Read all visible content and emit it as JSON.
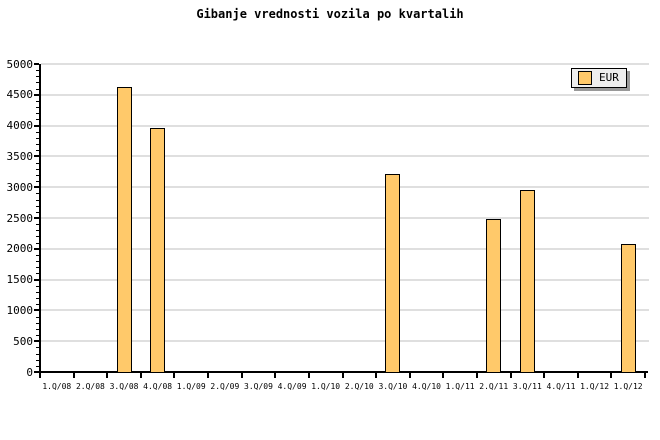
{
  "title": "Gibanje vrednosti vozila po kvartalih",
  "legend": {
    "label": "EUR"
  },
  "colors": {
    "background": "#FFFFFF",
    "bar_fill": "#FFC96A",
    "bar_border": "#000000",
    "grid": "#DFDFDF",
    "axis": "#000000",
    "text": "#000000",
    "legend_bg": "#EEEEEE",
    "legend_shadow": "#999999"
  },
  "chart_data": {
    "type": "bar",
    "title": "Gibanje vrednosti vozila po kvartalih",
    "categories": [
      "1.Q/08",
      "2.Q/08",
      "3.Q/08",
      "4.Q/08",
      "1.Q/09",
      "2.Q/09",
      "3.Q/09",
      "4.Q/09",
      "1.Q/10",
      "2.Q/10",
      "3.Q/10",
      "4.Q/10",
      "1.Q/11",
      "2.Q/11",
      "3.Q/11",
      "4.Q/11",
      "1.Q/12",
      "1.Q/12"
    ],
    "series": [
      {
        "name": "EUR",
        "values": [
          null,
          null,
          4630,
          3960,
          null,
          null,
          null,
          null,
          null,
          null,
          3220,
          null,
          null,
          2490,
          2960,
          null,
          null,
          2085
        ]
      }
    ],
    "xlabel": "",
    "ylabel": "",
    "ylim": [
      0,
      5000
    ],
    "ytick_step": 500,
    "yminor_step": 100,
    "yticks": [
      0,
      500,
      1000,
      1500,
      2000,
      2500,
      3000,
      3500,
      4000,
      4500,
      5000
    ],
    "grid": true,
    "legend_position": "top-right"
  }
}
